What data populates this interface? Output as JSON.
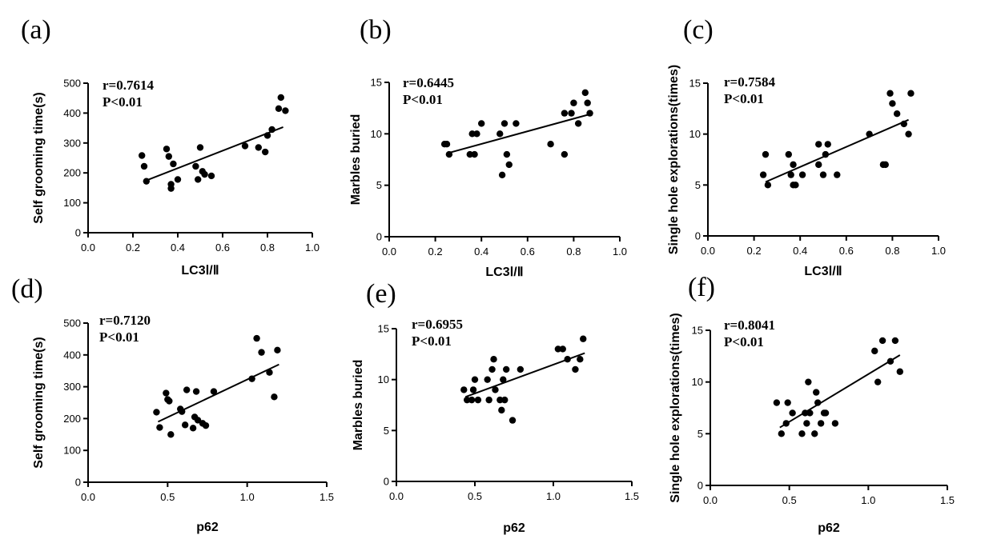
{
  "chart_data": [
    {
      "type": "scatter",
      "panel": "(a)",
      "annotation": [
        "r=0.7614",
        "P<0.01"
      ],
      "xlabel": "LC3Ⅰ/Ⅱ",
      "ylabel": "Self grooming time(s)",
      "xlim": [
        0.0,
        1.0
      ],
      "ylim": [
        0,
        500
      ],
      "xticks": [
        0.0,
        0.2,
        0.4,
        0.6,
        0.8,
        1.0
      ],
      "xtick_labels": [
        "0.0",
        "0.2",
        "0.4",
        "0.6",
        "0.8",
        "1.0"
      ],
      "yticks": [
        0,
        100,
        200,
        300,
        400,
        500
      ],
      "ytick_labels": [
        "0",
        "100",
        "200",
        "300",
        "400",
        "500"
      ],
      "trendline": [
        [
          0.25,
          172
        ],
        [
          0.87,
          353
        ]
      ],
      "points": [
        [
          0.24,
          258
        ],
        [
          0.25,
          222
        ],
        [
          0.26,
          172
        ],
        [
          0.35,
          280
        ],
        [
          0.36,
          255
        ],
        [
          0.37,
          148
        ],
        [
          0.37,
          162
        ],
        [
          0.38,
          230
        ],
        [
          0.4,
          178
        ],
        [
          0.48,
          222
        ],
        [
          0.49,
          178
        ],
        [
          0.5,
          285
        ],
        [
          0.51,
          205
        ],
        [
          0.52,
          195
        ],
        [
          0.55,
          190
        ],
        [
          0.7,
          290
        ],
        [
          0.76,
          285
        ],
        [
          0.79,
          270
        ],
        [
          0.8,
          325
        ],
        [
          0.82,
          345
        ],
        [
          0.85,
          415
        ],
        [
          0.86,
          452
        ],
        [
          0.88,
          408
        ]
      ]
    },
    {
      "type": "scatter",
      "panel": "(b)",
      "annotation": [
        "r=0.6445",
        "P<0.01"
      ],
      "xlabel": "LC3Ⅰ/Ⅱ",
      "ylabel": "Marbles buried",
      "xlim": [
        0.0,
        1.0
      ],
      "ylim": [
        0,
        15
      ],
      "xticks": [
        0.0,
        0.2,
        0.4,
        0.6,
        0.8,
        1.0
      ],
      "xtick_labels": [
        "0.0",
        "0.2",
        "0.4",
        "0.6",
        "0.8",
        "1.0"
      ],
      "yticks": [
        0,
        5,
        10,
        15
      ],
      "ytick_labels": [
        "0",
        "5",
        "10",
        "15"
      ],
      "trendline": [
        [
          0.25,
          8.1
        ],
        [
          0.87,
          11.9
        ]
      ],
      "points": [
        [
          0.24,
          9
        ],
        [
          0.25,
          9
        ],
        [
          0.26,
          8
        ],
        [
          0.35,
          8
        ],
        [
          0.36,
          10
        ],
        [
          0.37,
          8
        ],
        [
          0.38,
          10
        ],
        [
          0.4,
          11
        ],
        [
          0.48,
          10
        ],
        [
          0.49,
          6
        ],
        [
          0.5,
          11
        ],
        [
          0.51,
          8
        ],
        [
          0.52,
          7
        ],
        [
          0.55,
          11
        ],
        [
          0.7,
          9
        ],
        [
          0.76,
          8
        ],
        [
          0.76,
          12
        ],
        [
          0.79,
          12
        ],
        [
          0.8,
          13
        ],
        [
          0.82,
          11
        ],
        [
          0.85,
          14
        ],
        [
          0.86,
          13
        ],
        [
          0.87,
          12
        ]
      ]
    },
    {
      "type": "scatter",
      "panel": "(c)",
      "annotation": [
        "r=0.7584",
        "P<0.01"
      ],
      "xlabel": "LC3Ⅰ/Ⅱ",
      "ylabel": "Single hole explorations(times)",
      "xlim": [
        0.0,
        1.0
      ],
      "ylim": [
        0,
        15
      ],
      "xticks": [
        0.0,
        0.2,
        0.4,
        0.6,
        0.8,
        1.0
      ],
      "xtick_labels": [
        "0.0",
        "0.2",
        "0.4",
        "0.6",
        "0.8",
        "1.0"
      ],
      "yticks": [
        0,
        5,
        10,
        15
      ],
      "ytick_labels": [
        "0",
        "5",
        "10",
        "15"
      ],
      "trendline": [
        [
          0.25,
          5.3
        ],
        [
          0.87,
          11.4
        ]
      ],
      "points": [
        [
          0.24,
          6
        ],
        [
          0.25,
          8
        ],
        [
          0.26,
          5
        ],
        [
          0.35,
          8
        ],
        [
          0.36,
          6
        ],
        [
          0.37,
          7
        ],
        [
          0.37,
          5
        ],
        [
          0.38,
          5
        ],
        [
          0.41,
          6
        ],
        [
          0.48,
          9
        ],
        [
          0.48,
          7
        ],
        [
          0.5,
          6
        ],
        [
          0.51,
          8
        ],
        [
          0.52,
          9
        ],
        [
          0.56,
          6
        ],
        [
          0.7,
          10
        ],
        [
          0.76,
          7
        ],
        [
          0.77,
          7
        ],
        [
          0.79,
          14
        ],
        [
          0.8,
          13
        ],
        [
          0.82,
          12
        ],
        [
          0.85,
          11
        ],
        [
          0.87,
          10
        ],
        [
          0.88,
          14
        ]
      ]
    },
    {
      "type": "scatter",
      "panel": "(d)",
      "annotation": [
        "r=0.7120",
        "P<0.01"
      ],
      "xlabel": "p62",
      "ylabel": "Self grooming time(s)",
      "xlim": [
        0.0,
        1.5
      ],
      "ylim": [
        0,
        500
      ],
      "xticks": [
        0.0,
        0.5,
        1.0,
        1.5
      ],
      "xtick_labels": [
        "0.0",
        "0.5",
        "1.0",
        "1.5"
      ],
      "yticks": [
        0,
        100,
        200,
        300,
        400,
        500
      ],
      "ytick_labels": [
        "0",
        "100",
        "200",
        "300",
        "400",
        "500"
      ],
      "trendline": [
        [
          0.44,
          190
        ],
        [
          1.2,
          370
        ]
      ],
      "points": [
        [
          0.43,
          220
        ],
        [
          0.45,
          172
        ],
        [
          0.49,
          280
        ],
        [
          0.5,
          260
        ],
        [
          0.51,
          255
        ],
        [
          0.52,
          150
        ],
        [
          0.58,
          230
        ],
        [
          0.59,
          222
        ],
        [
          0.61,
          180
        ],
        [
          0.62,
          290
        ],
        [
          0.66,
          170
        ],
        [
          0.67,
          205
        ],
        [
          0.68,
          285
        ],
        [
          0.69,
          195
        ],
        [
          0.72,
          185
        ],
        [
          0.74,
          178
        ],
        [
          0.79,
          285
        ],
        [
          1.03,
          325
        ],
        [
          1.06,
          452
        ],
        [
          1.09,
          408
        ],
        [
          1.14,
          345
        ],
        [
          1.17,
          268
        ],
        [
          1.19,
          415
        ]
      ]
    },
    {
      "type": "scatter",
      "panel": "(e)",
      "annotation": [
        "r=0.6955",
        "P<0.01"
      ],
      "xlabel": "p62",
      "ylabel": "Marbles buried",
      "xlim": [
        0.0,
        1.5
      ],
      "ylim": [
        0,
        15
      ],
      "xticks": [
        0.0,
        0.5,
        1.0,
        1.5
      ],
      "xtick_labels": [
        "0.0",
        "0.5",
        "1.0",
        "1.5"
      ],
      "yticks": [
        0,
        5,
        10,
        15
      ],
      "ytick_labels": [
        "0",
        "5",
        "10",
        "15"
      ],
      "trendline": [
        [
          0.44,
          8.3
        ],
        [
          1.2,
          12.6
        ]
      ],
      "points": [
        [
          0.43,
          9
        ],
        [
          0.45,
          8
        ],
        [
          0.48,
          8
        ],
        [
          0.49,
          9
        ],
        [
          0.5,
          10
        ],
        [
          0.52,
          8
        ],
        [
          0.58,
          10
        ],
        [
          0.59,
          8
        ],
        [
          0.61,
          11
        ],
        [
          0.62,
          12
        ],
        [
          0.63,
          9
        ],
        [
          0.66,
          8
        ],
        [
          0.67,
          7
        ],
        [
          0.68,
          10
        ],
        [
          0.69,
          8
        ],
        [
          0.7,
          11
        ],
        [
          0.74,
          6
        ],
        [
          0.79,
          11
        ],
        [
          1.03,
          13
        ],
        [
          1.06,
          13
        ],
        [
          1.09,
          12
        ],
        [
          1.14,
          11
        ],
        [
          1.17,
          12
        ],
        [
          1.19,
          14
        ]
      ]
    },
    {
      "type": "scatter",
      "panel": "(f)",
      "annotation": [
        "r=0.8041",
        "P<0.01"
      ],
      "xlabel": "p62",
      "ylabel": "Single hole explorations(times)",
      "xlim": [
        0.0,
        1.5
      ],
      "ylim": [
        0,
        15
      ],
      "xticks": [
        0.0,
        0.5,
        1.0,
        1.5
      ],
      "xtick_labels": [
        "0.0",
        "0.5",
        "1.0",
        "1.5"
      ],
      "yticks": [
        0,
        5,
        10,
        15
      ],
      "ytick_labels": [
        "0",
        "5",
        "10",
        "15"
      ],
      "trendline": [
        [
          0.44,
          5.6
        ],
        [
          1.2,
          12.6
        ]
      ],
      "points": [
        [
          0.42,
          8
        ],
        [
          0.45,
          5
        ],
        [
          0.48,
          6
        ],
        [
          0.49,
          8
        ],
        [
          0.52,
          7
        ],
        [
          0.58,
          5
        ],
        [
          0.6,
          7
        ],
        [
          0.61,
          6
        ],
        [
          0.62,
          10
        ],
        [
          0.63,
          7
        ],
        [
          0.66,
          5
        ],
        [
          0.67,
          9
        ],
        [
          0.68,
          8
        ],
        [
          0.7,
          6
        ],
        [
          0.72,
          7
        ],
        [
          0.73,
          7
        ],
        [
          0.79,
          6
        ],
        [
          1.04,
          13
        ],
        [
          1.06,
          10
        ],
        [
          1.09,
          14
        ],
        [
          1.14,
          12
        ],
        [
          1.17,
          14
        ],
        [
          1.2,
          11
        ]
      ]
    }
  ]
}
